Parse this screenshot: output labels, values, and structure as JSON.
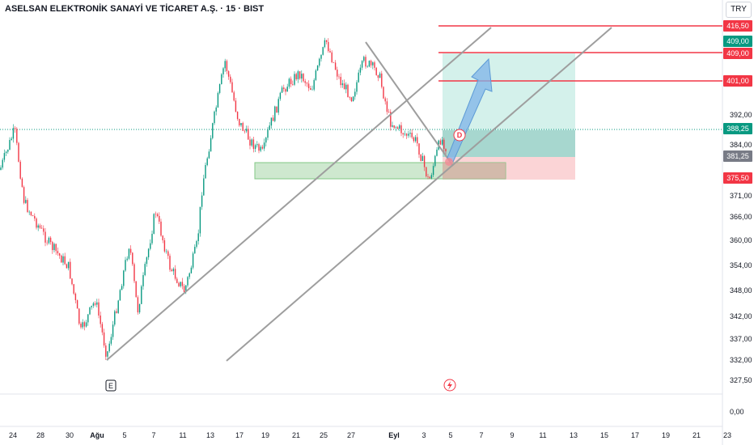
{
  "chart_data": {
    "type": "candlestick",
    "title": "ASELSAN ELEKTRONİK SANAYİ VE TİCARET A.Ş. · 15 · BIST",
    "currency": "TRY",
    "y_axis_ticks": [
      "392,00",
      "384,00",
      "371,00",
      "366,00",
      "360,00",
      "354,00",
      "348,00",
      "342,00",
      "337,00",
      "332,00",
      "327,50",
      "0,00"
    ],
    "x_axis_ticks": [
      "24",
      "28",
      "30",
      "Ağu",
      "5",
      "7",
      "11",
      "13",
      "17",
      "19",
      "21",
      "25",
      "27",
      "Eyl",
      "3",
      "5",
      "7",
      "9",
      "11",
      "13",
      "15",
      "17",
      "19",
      "21",
      "23"
    ],
    "price_labels": [
      {
        "value": "416,50",
        "color": "#f23645"
      },
      {
        "value": "409,00",
        "color": "#089981"
      },
      {
        "value": "409,00",
        "color": "#f23645"
      },
      {
        "value": "401,00",
        "color": "#f23645"
      },
      {
        "value": "388,25",
        "color": "#089981"
      },
      {
        "value": "381,25",
        "color": "#787b86"
      },
      {
        "value": "375,50",
        "color": "#f23645"
      }
    ],
    "event_markers": [
      "E",
      "D"
    ],
    "colors": {
      "up": "#089981",
      "down": "#f23645",
      "zone_green": "#a5d6a7",
      "zone_red": "#f7a9ae",
      "target": "#9fdfd3"
    }
  }
}
